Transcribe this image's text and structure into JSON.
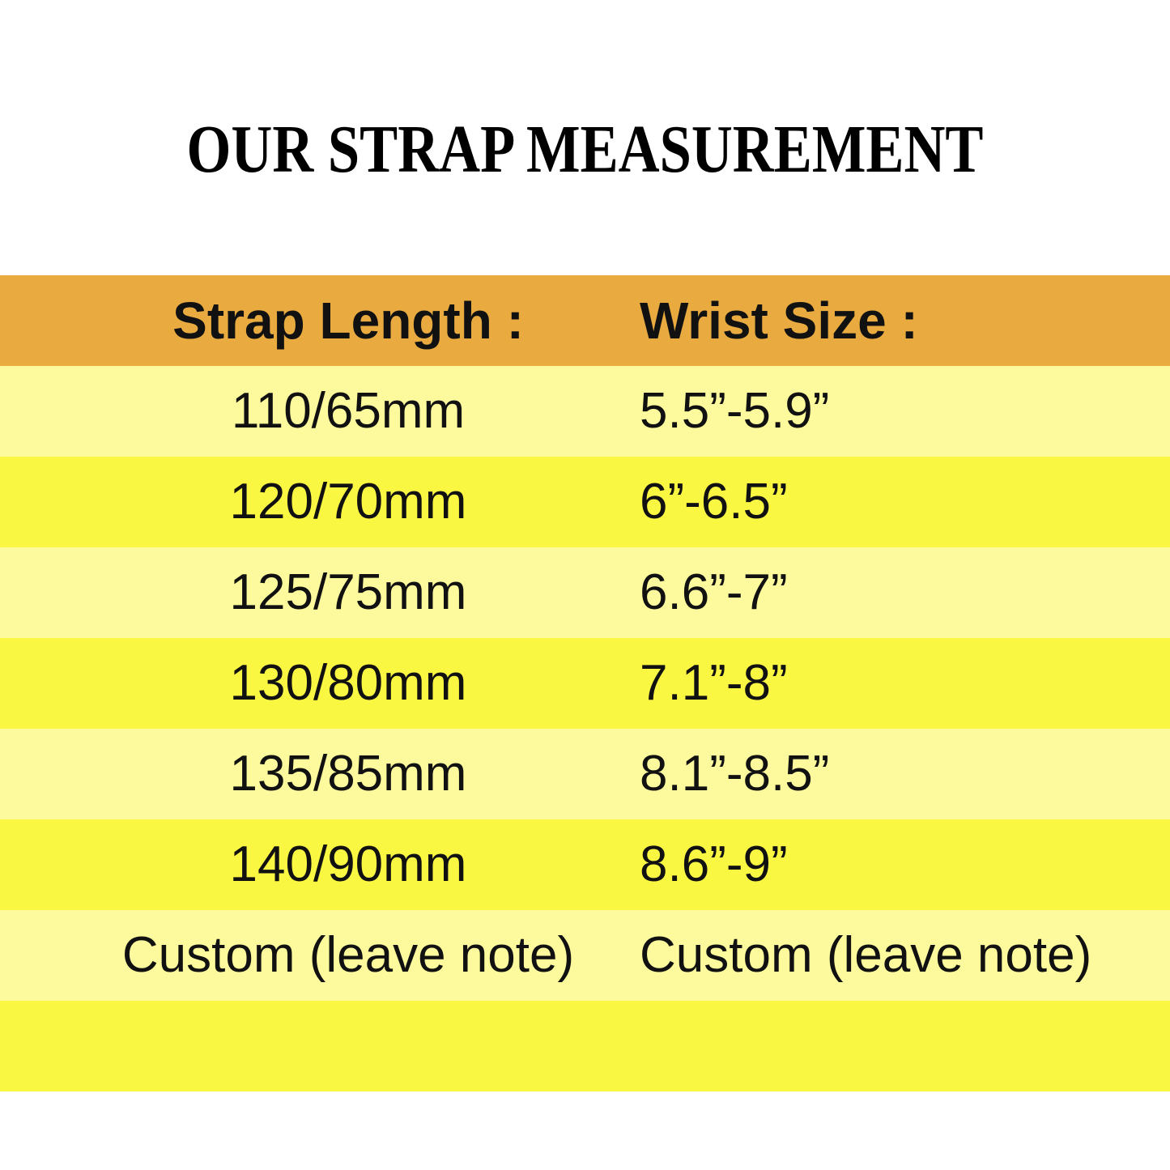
{
  "title": "OUR STRAP MEASUREMENT",
  "colors": {
    "page_bg": "#FFFFFF",
    "header_bg": "#E9AB40",
    "row_light": "#FCFA9C",
    "row_bright": "#FAF743",
    "text": "#111111"
  },
  "chart_data": {
    "type": "table",
    "title": "OUR STRAP MEASUREMENT",
    "columns": [
      "Strap Length :",
      "Wrist Size :"
    ],
    "rows": [
      [
        "110/65mm",
        "5.5”-5.9”"
      ],
      [
        "120/70mm",
        "6”-6.5”"
      ],
      [
        "125/75mm",
        "6.6”-7”"
      ],
      [
        "130/80mm",
        "7.1”-8”"
      ],
      [
        "135/85mm",
        "8.1”-8.5”"
      ],
      [
        "140/90mm",
        "8.6”-9”"
      ],
      [
        "Custom (leave note)",
        "Custom (leave note)"
      ],
      [
        "",
        ""
      ]
    ],
    "layout_hints": {
      "header_style": "orange band, bold black text",
      "body_style": "alternating light/bright yellow bands, left column centered, right column left-aligned",
      "grid": "off"
    }
  }
}
